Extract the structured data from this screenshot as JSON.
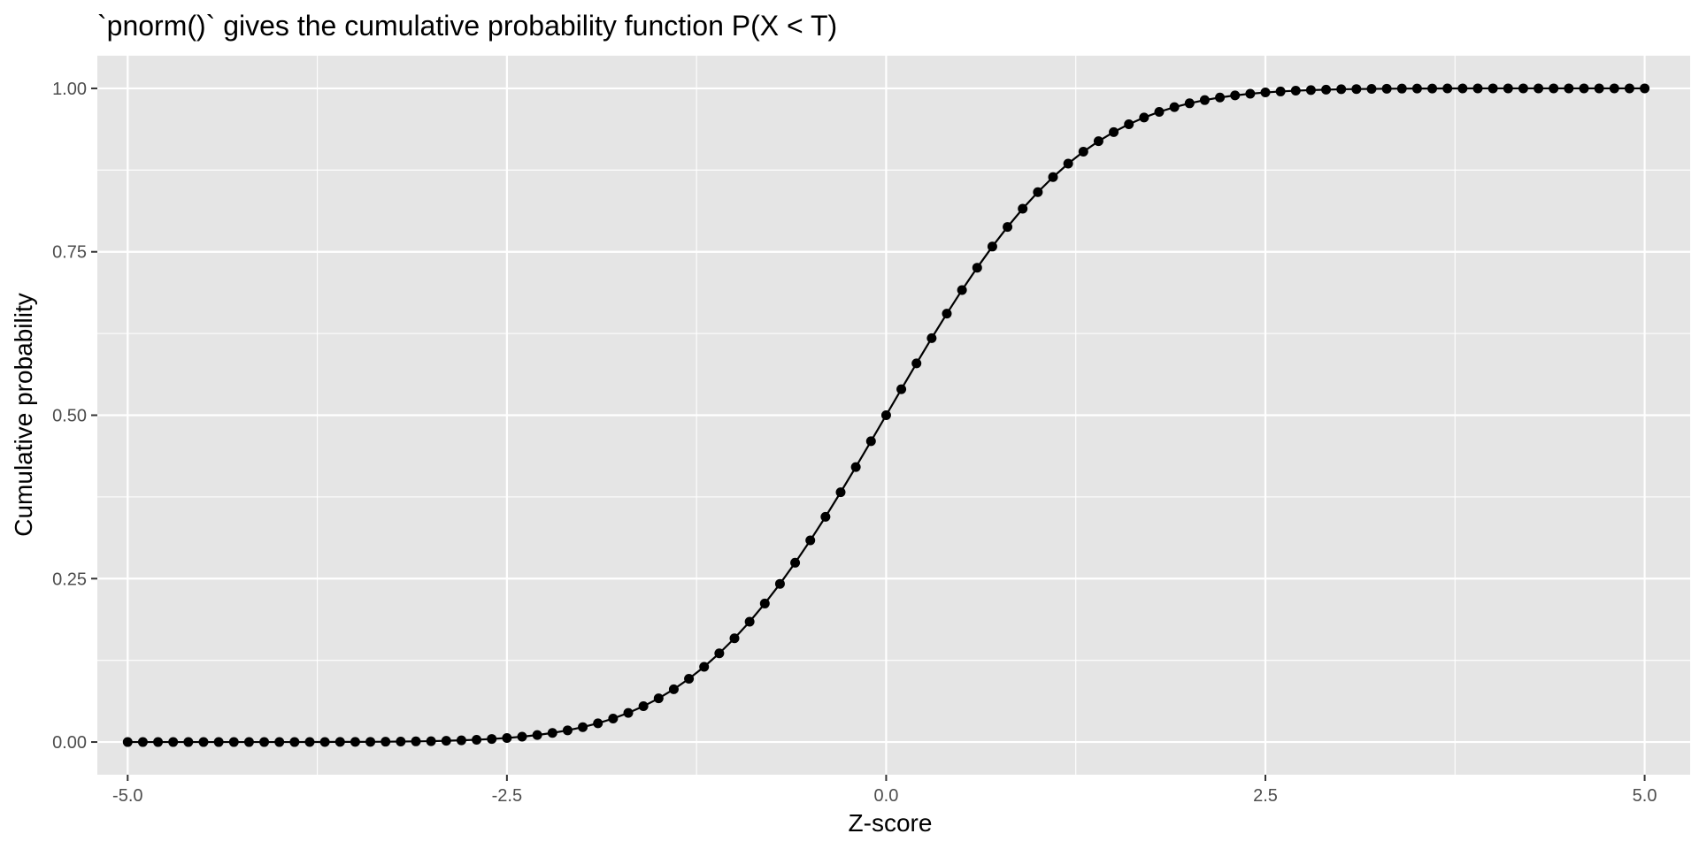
{
  "chart_data": {
    "type": "line",
    "title": "`pnorm()` gives the cumulative probability function P(X < T)",
    "xlabel": "Z-score",
    "ylabel": "Cumulative probability",
    "xlim": [
      -5.2,
      5.3
    ],
    "ylim": [
      -0.05,
      1.05
    ],
    "x_ticks": [
      -5.0,
      -2.5,
      0.0,
      2.5,
      5.0
    ],
    "x_tick_labels": [
      "-5.0",
      "-2.5",
      "0.0",
      "2.5",
      "5.0"
    ],
    "y_ticks": [
      0.0,
      0.25,
      0.5,
      0.75,
      1.0
    ],
    "y_tick_labels": [
      "0.00",
      "0.25",
      "0.50",
      "0.75",
      "1.00"
    ],
    "grid": true,
    "panel_background": "#e5e5e5",
    "gridline_color": "#ffffff",
    "series_color": "#000000",
    "series": [
      {
        "x": [
          -5.0,
          -4.9,
          -4.8,
          -4.7,
          -4.6,
          -4.5,
          -4.4,
          -4.3,
          -4.2,
          -4.1,
          -4.0,
          -3.9,
          -3.8,
          -3.7,
          -3.6,
          -3.5,
          -3.4,
          -3.3,
          -3.2,
          -3.1,
          -3.0,
          -2.9,
          -2.8,
          -2.7,
          -2.6,
          -2.5,
          -2.4,
          -2.3,
          -2.2,
          -2.1,
          -2.0,
          -1.9,
          -1.8,
          -1.7,
          -1.6,
          -1.5,
          -1.4,
          -1.3,
          -1.2,
          -1.1,
          -1.0,
          -0.9,
          -0.8,
          -0.7,
          -0.6,
          -0.5,
          -0.4,
          -0.3,
          -0.2,
          -0.1,
          0.0,
          0.1,
          0.2,
          0.3,
          0.4,
          0.5,
          0.6,
          0.7,
          0.8,
          0.9,
          1.0,
          1.1,
          1.2,
          1.3,
          1.4,
          1.5,
          1.6,
          1.7,
          1.8,
          1.9,
          2.0,
          2.1,
          2.2,
          2.3,
          2.4,
          2.5,
          2.6,
          2.7,
          2.8,
          2.9,
          3.0,
          3.1,
          3.2,
          3.3,
          3.4,
          3.5,
          3.6,
          3.7,
          3.8,
          3.9,
          4.0,
          4.1,
          4.2,
          4.3,
          4.4,
          4.5,
          4.6,
          4.7,
          4.8,
          4.9,
          5.0
        ],
        "y": [
          0.0,
          0.0,
          0.0,
          0.0,
          0.0,
          0.0,
          0.0,
          0.0,
          0.0,
          0.0,
          0.0,
          0.0,
          0.0001,
          0.0001,
          0.0002,
          0.0002,
          0.0003,
          0.0005,
          0.0007,
          0.001,
          0.0013,
          0.0019,
          0.0026,
          0.0035,
          0.0047,
          0.0062,
          0.0082,
          0.0107,
          0.0139,
          0.0179,
          0.0228,
          0.0287,
          0.0359,
          0.0446,
          0.0548,
          0.0668,
          0.0808,
          0.0968,
          0.1151,
          0.1357,
          0.1587,
          0.1841,
          0.2119,
          0.242,
          0.2743,
          0.3085,
          0.3446,
          0.3821,
          0.4207,
          0.4602,
          0.5,
          0.5398,
          0.5793,
          0.6179,
          0.6554,
          0.6915,
          0.7257,
          0.758,
          0.7881,
          0.8159,
          0.8413,
          0.8643,
          0.8849,
          0.9032,
          0.9192,
          0.9332,
          0.9452,
          0.9554,
          0.9641,
          0.9713,
          0.9772,
          0.9821,
          0.9861,
          0.9893,
          0.9918,
          0.9938,
          0.9953,
          0.9965,
          0.9974,
          0.9981,
          0.9987,
          0.999,
          0.9993,
          0.9995,
          0.9997,
          0.9998,
          0.9998,
          0.9999,
          0.9999,
          1.0,
          1.0,
          1.0,
          1.0,
          1.0,
          1.0,
          1.0,
          1.0,
          1.0,
          1.0,
          1.0,
          1.0
        ]
      }
    ]
  }
}
